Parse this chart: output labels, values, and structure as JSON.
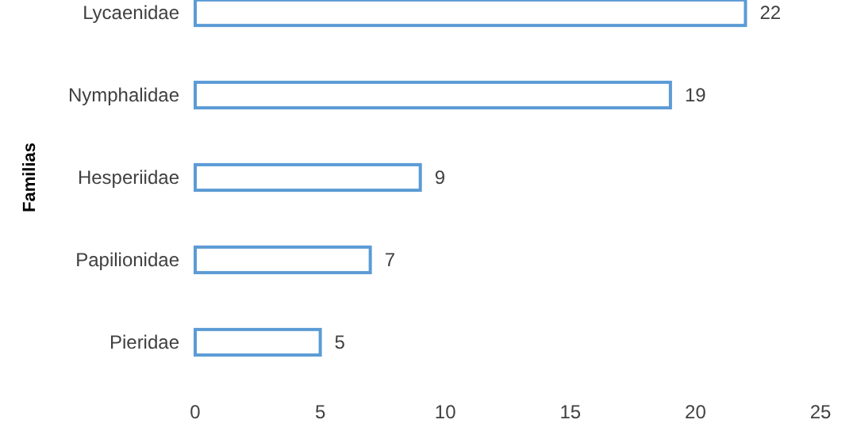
{
  "chart_data": {
    "type": "bar",
    "orientation": "horizontal",
    "ylabel": "Familias",
    "categories": [
      "Lycaenidae",
      "Nymphalidae",
      "Hesperiidae",
      "Papilionidae",
      "Pieridae"
    ],
    "values": [
      22,
      19,
      9,
      7,
      5
    ],
    "color": "#5b9bd5",
    "xlim": [
      0,
      25
    ],
    "xticks": [
      0,
      5,
      10,
      15,
      20,
      25
    ],
    "data_labels": true,
    "grid": false
  }
}
